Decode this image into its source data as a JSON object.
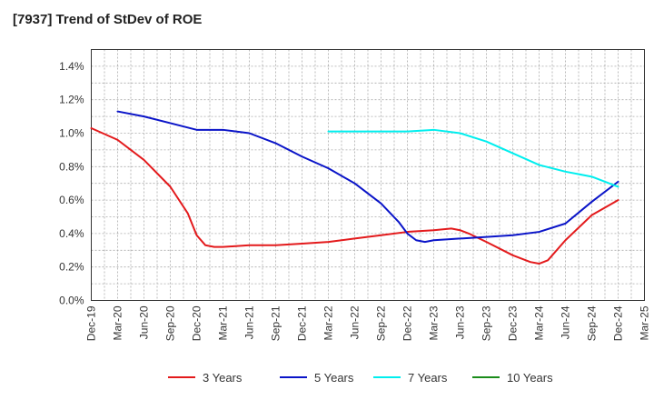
{
  "title": "[7937]  Trend of StDev of ROE",
  "chart_data": {
    "type": "line",
    "title": "[7937]  Trend of StDev of ROE",
    "xlabel": "",
    "ylabel": "",
    "x_ticks": [
      "Dec-19",
      "Mar-20",
      "Jun-20",
      "Sep-20",
      "Dec-20",
      "Mar-21",
      "Jun-21",
      "Sep-21",
      "Dec-21",
      "Mar-22",
      "Jun-22",
      "Sep-22",
      "Dec-22",
      "Mar-23",
      "Jun-23",
      "Sep-23",
      "Dec-23",
      "Mar-24",
      "Jun-24",
      "Sep-24",
      "Dec-24",
      "Mar-25"
    ],
    "y_ticks": [
      "0.0%",
      "0.2%",
      "0.4%",
      "0.6%",
      "0.8%",
      "1.0%",
      "1.2%",
      "1.4%"
    ],
    "ylim": [
      0,
      1.5
    ],
    "y_unit": "%",
    "grid": true,
    "legend_position": "bottom",
    "series": [
      {
        "name": "3 Years",
        "color": "#e31a1c",
        "x": [
          "Dec-19",
          "Mar-20",
          "Jun-20",
          "Sep-20",
          "Nov-20",
          "Dec-20",
          "Jan-21",
          "Feb-21",
          "Mar-21",
          "Jun-21",
          "Sep-21",
          "Dec-21",
          "Mar-22",
          "Jun-22",
          "Sep-22",
          "Dec-22",
          "Mar-23",
          "May-23",
          "Jun-23",
          "Jul-23",
          "Sep-23",
          "Dec-23",
          "Feb-24",
          "Mar-24",
          "Apr-24",
          "Jun-24",
          "Sep-24",
          "Dec-24"
        ],
        "values": [
          1.03,
          0.96,
          0.84,
          0.68,
          0.52,
          0.39,
          0.33,
          0.32,
          0.32,
          0.33,
          0.33,
          0.34,
          0.35,
          0.37,
          0.39,
          0.41,
          0.42,
          0.43,
          0.42,
          0.4,
          0.35,
          0.27,
          0.23,
          0.22,
          0.24,
          0.36,
          0.51,
          0.6
        ]
      },
      {
        "name": "5 Years",
        "color": "#0a14c8",
        "x": [
          "Mar-20",
          "Jun-20",
          "Sep-20",
          "Dec-20",
          "Mar-21",
          "Jun-21",
          "Sep-21",
          "Dec-21",
          "Mar-22",
          "Jun-22",
          "Sep-22",
          "Nov-22",
          "Dec-22",
          "Jan-23",
          "Feb-23",
          "Mar-23",
          "Jun-23",
          "Sep-23",
          "Dec-23",
          "Mar-24",
          "Jun-24",
          "Sep-24",
          "Dec-24"
        ],
        "values": [
          1.13,
          1.1,
          1.06,
          1.02,
          1.02,
          1.0,
          0.94,
          0.86,
          0.79,
          0.7,
          0.58,
          0.47,
          0.4,
          0.36,
          0.35,
          0.36,
          0.37,
          0.38,
          0.39,
          0.41,
          0.46,
          0.59,
          0.71
        ]
      },
      {
        "name": "7 Years",
        "color": "#00eeee",
        "x": [
          "Mar-22",
          "Jun-22",
          "Sep-22",
          "Dec-22",
          "Mar-23",
          "Jun-23",
          "Sep-23",
          "Dec-23",
          "Mar-24",
          "Jun-24",
          "Sep-24",
          "Dec-24"
        ],
        "values": [
          1.01,
          1.01,
          1.01,
          1.01,
          1.02,
          1.0,
          0.95,
          0.88,
          0.81,
          0.77,
          0.74,
          0.68
        ]
      },
      {
        "name": "10 Years",
        "color": "#1a8c1a",
        "x": [],
        "values": []
      }
    ]
  }
}
